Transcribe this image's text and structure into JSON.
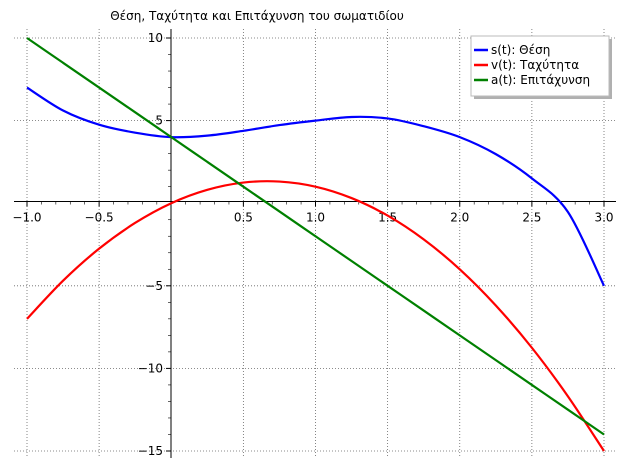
{
  "chart_data": {
    "type": "line",
    "title": "Θέση, Ταχύτητα και Επιτάχυνση του σωματιδίου",
    "xlabel": "",
    "ylabel": "",
    "xlim": [
      -1.0,
      3.0
    ],
    "ylim": [
      -15.3,
      10.5
    ],
    "grid": true,
    "legend_position": "top-right",
    "x_ticks": [
      {
        "value": -1.0,
        "label": "−1.0"
      },
      {
        "value": -0.5,
        "label": "−0.5"
      },
      {
        "value": 0.5,
        "label": "0.5"
      },
      {
        "value": 1.0,
        "label": "1.0"
      },
      {
        "value": 1.5,
        "label": "1.5"
      },
      {
        "value": 2.0,
        "label": "2.0"
      },
      {
        "value": 2.5,
        "label": "2.5"
      },
      {
        "value": 3.0,
        "label": "3.0"
      }
    ],
    "y_ticks": [
      {
        "value": 10,
        "label": "10"
      },
      {
        "value": 5,
        "label": "5"
      },
      {
        "value": -5,
        "label": "−5"
      },
      {
        "value": -10,
        "label": "−10"
      },
      {
        "value": -15,
        "label": "−15"
      }
    ],
    "x": [
      -1.0,
      -0.75,
      -0.5,
      -0.25,
      0.0,
      0.25,
      0.5,
      0.75,
      1.0,
      1.25,
      1.5,
      1.75,
      2.0,
      2.25,
      2.5,
      2.75,
      3.0
    ],
    "series": [
      {
        "name": "s(t): Θέση",
        "color": "#0000ff",
        "values": [
          7.0,
          5.61,
          4.75,
          4.27,
          4.0,
          4.09,
          4.38,
          4.73,
          5.0,
          5.22,
          5.13,
          4.66,
          4.0,
          2.97,
          1.5,
          -0.53,
          -5.0
        ]
      },
      {
        "name": "v(t): Ταχύτητα",
        "color": "#ff0000",
        "values": [
          -7.0,
          -4.69,
          -2.75,
          -1.19,
          0.0,
          0.81,
          1.25,
          1.31,
          1.0,
          0.31,
          -0.75,
          -2.19,
          -4.0,
          -6.19,
          -8.75,
          -11.69,
          -15.0
        ]
      },
      {
        "name": "a(t): Επιτάχυνση",
        "color": "#008000",
        "values": [
          10.0,
          8.5,
          7.0,
          5.5,
          4.0,
          2.5,
          1.0,
          -0.5,
          -2.0,
          -3.5,
          -5.0,
          -6.5,
          -8.0,
          -9.5,
          -11.0,
          -12.5,
          -14.0
        ]
      }
    ]
  }
}
